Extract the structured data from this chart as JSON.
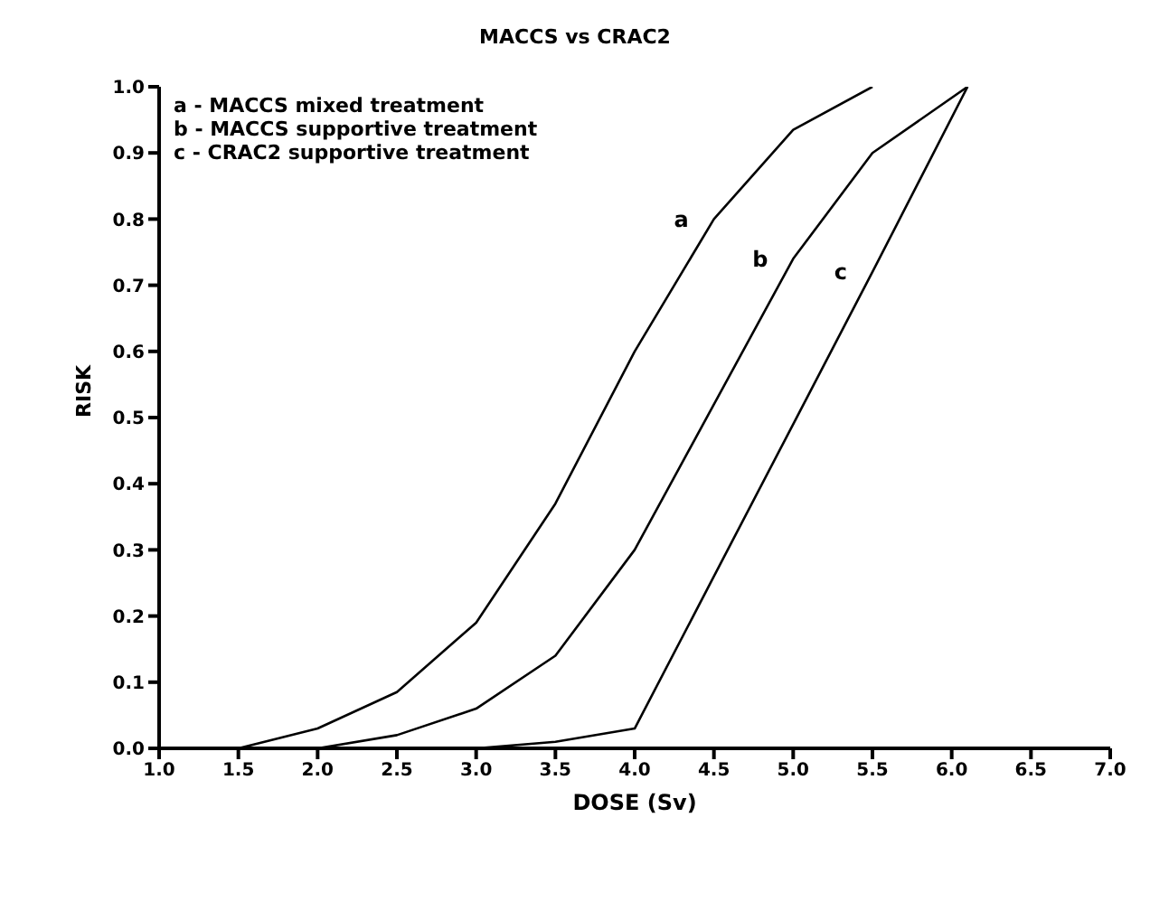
{
  "chart_data": {
    "type": "line",
    "title": "MACCS vs CRAC2",
    "xlabel": "DOSE (Sv)",
    "ylabel": "RISK",
    "annotations": [
      "a - MACCS mixed treatment",
      "b - MACCS supportive treatment",
      "c - CRAC2 supportive treatment"
    ],
    "series": [
      {
        "name": "a",
        "color": "#000000",
        "x": [
          1.0,
          1.5,
          2.0,
          2.5,
          3.0,
          3.5,
          4.0,
          4.5,
          5.0,
          5.5
        ],
        "values": [
          0,
          0,
          0.03,
          0.085,
          0.19,
          0.37,
          0.6,
          0.8,
          0.935,
          1.0
        ]
      },
      {
        "name": "b",
        "color": "#000000",
        "x": [
          2.0,
          2.5,
          3.0,
          3.5,
          4.0,
          4.5,
          5.0,
          5.5,
          6.1
        ],
        "values": [
          0,
          0.02,
          0.06,
          0.14,
          0.3,
          0.52,
          0.74,
          0.9,
          1.0
        ]
      },
      {
        "name": "c",
        "color": "#000000",
        "x": [
          3.0,
          3.5,
          4.0,
          4.5,
          5.0,
          5.5,
          6.1
        ],
        "values": [
          0,
          0.01,
          0.03,
          0.26,
          0.49,
          0.72,
          1.0
        ]
      }
    ],
    "xlim": [
      1,
      7
    ],
    "ylim": [
      0,
      1
    ],
    "xticks": [
      {
        "value": 1,
        "label": "1.0"
      },
      {
        "value": 1.5,
        "label": "1.5"
      },
      {
        "value": 2,
        "label": "2.0"
      },
      {
        "value": 2.5,
        "label": "2.5"
      },
      {
        "value": 3,
        "label": "3.0"
      },
      {
        "value": 3.5,
        "label": "3.5"
      },
      {
        "value": 4,
        "label": "4.0"
      },
      {
        "value": 4.5,
        "label": "4.5"
      },
      {
        "value": 5,
        "label": "5.0"
      },
      {
        "value": 5.5,
        "label": "5.5"
      },
      {
        "value": 6,
        "label": "6.0"
      },
      {
        "value": 6.5,
        "label": "6.5"
      },
      {
        "value": 7,
        "label": "7.0"
      }
    ],
    "yticks": [
      {
        "value": 0,
        "label": "0.0"
      },
      {
        "value": 0.1,
        "label": "0.1"
      },
      {
        "value": 0.2,
        "label": "0.2"
      },
      {
        "value": 0.3,
        "label": "0.3"
      },
      {
        "value": 0.4,
        "label": "0.4"
      },
      {
        "value": 0.5,
        "label": "0.5"
      },
      {
        "value": 0.6,
        "label": "0.6"
      },
      {
        "value": 0.7,
        "label": "0.7"
      },
      {
        "value": 0.8,
        "label": "0.8"
      },
      {
        "value": 0.9,
        "label": "0.9"
      },
      {
        "value": 1,
        "label": "1.0"
      }
    ],
    "grid": false,
    "legend": false,
    "marker": "none",
    "line_style": "solid"
  }
}
